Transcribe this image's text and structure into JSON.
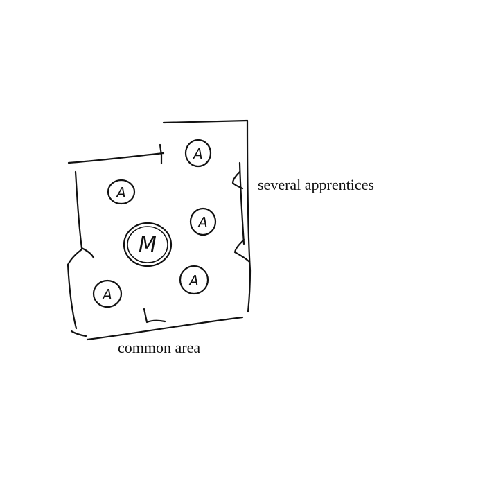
{
  "labels": {
    "apprentices": "several apprentices",
    "common": "common area"
  },
  "people": {
    "master": "M",
    "apprentice": "A"
  },
  "colors": {
    "ink": "#111111",
    "paper": "#ffffff"
  }
}
